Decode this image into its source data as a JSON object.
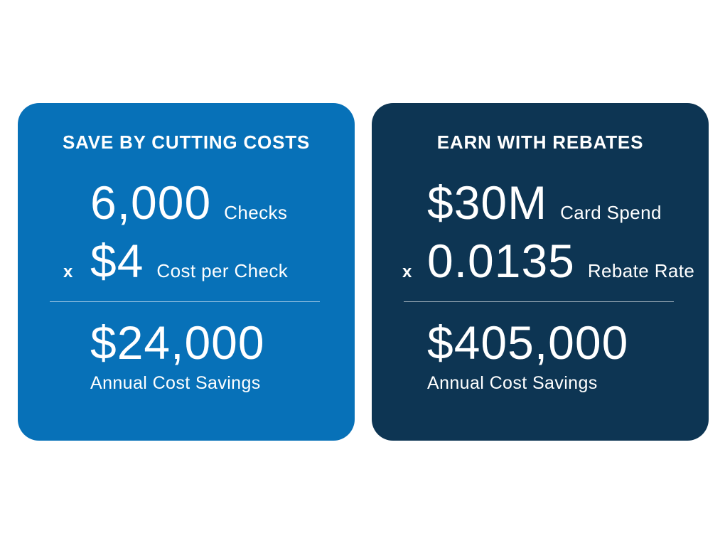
{
  "page": {
    "background": "#ffffff",
    "text_color": "#ffffff",
    "divider_color": "rgba(255,255,255,0.6)"
  },
  "cards": [
    {
      "id": "save-by-cutting-costs",
      "bg": "#0771b8",
      "title": "SAVE BY CUTTING COSTS",
      "rows": [
        {
          "operator": "",
          "value": "6,000",
          "unit": "Checks"
        },
        {
          "operator": "x",
          "value": "$4",
          "unit": "Cost per Check"
        }
      ],
      "result": {
        "value": "$24,000",
        "label": "Annual Cost Savings"
      }
    },
    {
      "id": "earn-with-rebates",
      "bg": "#0d3553",
      "title": "EARN WITH REBATES",
      "rows": [
        {
          "operator": "",
          "value": "$30M",
          "unit": "Card Spend"
        },
        {
          "operator": "x",
          "value": "0.0135",
          "unit": "Rebate Rate"
        }
      ],
      "result": {
        "value": "$405,000",
        "label": "Annual Cost Savings"
      }
    }
  ]
}
